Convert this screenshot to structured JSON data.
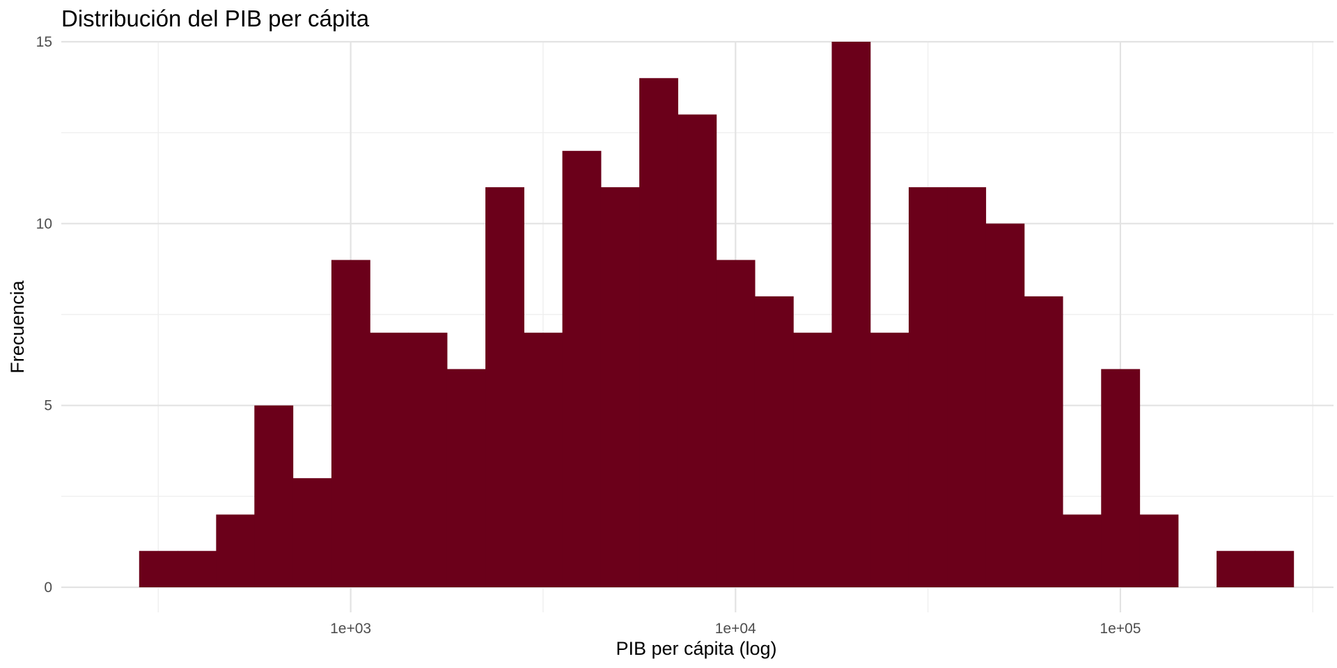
{
  "chart_data": {
    "type": "bar",
    "title": "Distribución del PIB per cápita",
    "xlabel": "PIB per cápita (log)",
    "ylabel": "Frecuencia",
    "x_scale": "log10",
    "x_tick_labels": [
      "1e+03",
      "1e+04",
      "1e+05"
    ],
    "x_tick_values": [
      1000,
      10000,
      100000
    ],
    "y_tick_labels": [
      "0",
      "5",
      "10",
      "15"
    ],
    "y_tick_values": [
      0,
      5,
      10,
      15
    ],
    "ylim": [
      0,
      15
    ],
    "xlim": [
      177,
      358000
    ],
    "bar_color": "#6b001a",
    "grid": true,
    "bin_width_log10": 0.1,
    "bins": [
      {
        "x_start": 282,
        "count": 1
      },
      {
        "x_start": 355,
        "count": 1
      },
      {
        "x_start": 447,
        "count": 2
      },
      {
        "x_start": 562,
        "count": 5
      },
      {
        "x_start": 708,
        "count": 3
      },
      {
        "x_start": 891,
        "count": 9
      },
      {
        "x_start": 1122,
        "count": 7
      },
      {
        "x_start": 1413,
        "count": 7
      },
      {
        "x_start": 1778,
        "count": 6
      },
      {
        "x_start": 2239,
        "count": 11
      },
      {
        "x_start": 2818,
        "count": 7
      },
      {
        "x_start": 3548,
        "count": 12
      },
      {
        "x_start": 4467,
        "count": 11
      },
      {
        "x_start": 5623,
        "count": 14
      },
      {
        "x_start": 7079,
        "count": 13
      },
      {
        "x_start": 8913,
        "count": 9
      },
      {
        "x_start": 11220,
        "count": 8
      },
      {
        "x_start": 14125,
        "count": 7
      },
      {
        "x_start": 17783,
        "count": 15
      },
      {
        "x_start": 22387,
        "count": 7
      },
      {
        "x_start": 28184,
        "count": 11
      },
      {
        "x_start": 35481,
        "count": 11
      },
      {
        "x_start": 44668,
        "count": 10
      },
      {
        "x_start": 56234,
        "count": 8
      },
      {
        "x_start": 70795,
        "count": 2
      },
      {
        "x_start": 89125,
        "count": 6
      },
      {
        "x_start": 112202,
        "count": 2
      },
      {
        "x_start": 141254,
        "count": 0
      },
      {
        "x_start": 177828,
        "count": 1
      },
      {
        "x_start": 223872,
        "count": 1
      }
    ]
  }
}
